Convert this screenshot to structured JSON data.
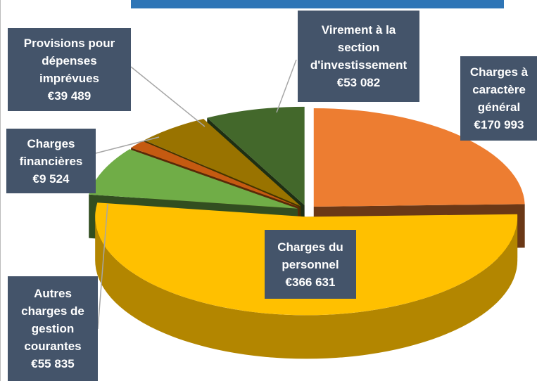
{
  "chart_data": {
    "type": "pie",
    "three_d": true,
    "categories": [
      "Charges à caractère général",
      "Charges du personnel",
      "Autres charges de gestion courantes",
      "Charges financières",
      "Provisions pour dépenses imprévues",
      "Virement à la section d'investissement"
    ],
    "values": [
      170993,
      366631,
      55835,
      9524,
      39489,
      53082
    ],
    "value_labels": [
      "€170 993",
      "€366 631",
      "€55 835",
      "€9 524",
      "€39 489",
      "€53 082"
    ],
    "colors": [
      "#ed7d31",
      "#ffc000",
      "#70ad47",
      "#c55a11",
      "#997300",
      "#43682b"
    ]
  }
}
